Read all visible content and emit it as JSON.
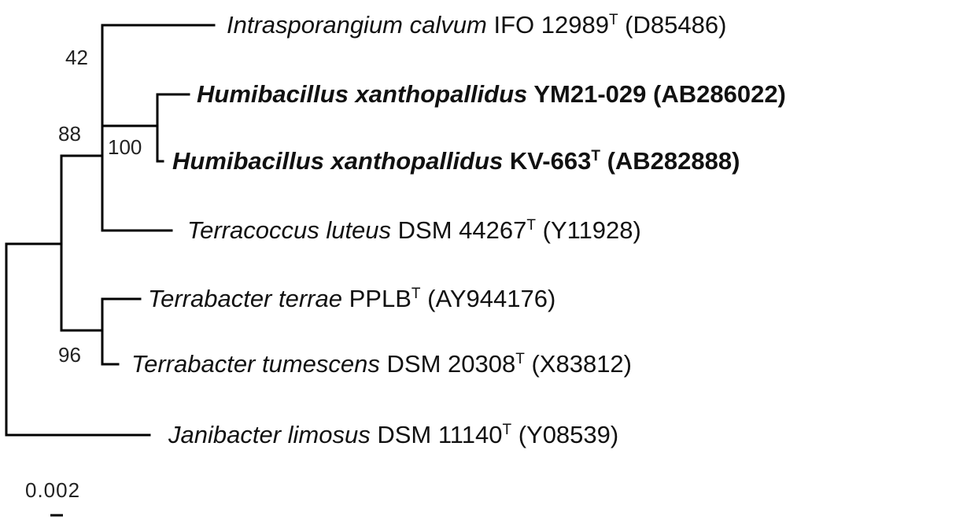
{
  "tree": {
    "leaves": [
      {
        "species": "Intrasporangium calvum",
        "strain": "IFO 12989",
        "type_strain": "T",
        "accession": "(D85486)",
        "bold": false
      },
      {
        "species": "Humibacillus xanthopallidus",
        "strain": "YM21-029",
        "type_strain": "",
        "accession": "(AB286022)",
        "bold": true
      },
      {
        "species": "Humibacillus xanthopallidus",
        "strain": "KV-663",
        "type_strain": "T",
        "accession": "(AB282888)",
        "bold": true
      },
      {
        "species": "Terracoccus luteus",
        "strain": "DSM 44267",
        "type_strain": "T",
        "accession": "(Y11928)",
        "bold": false
      },
      {
        "species": "Terrabacter terrae",
        "strain": "PPLB",
        "type_strain": "T",
        "accession": "(AY944176)",
        "bold": false
      },
      {
        "species": "Terrabacter tumescens",
        "strain": "DSM 20308",
        "type_strain": "T",
        "accession": "(X83812)",
        "bold": false
      },
      {
        "species": "Janibacter limosus",
        "strain": "DSM 11140",
        "type_strain": "T",
        "accession": "(Y08539)",
        "bold": false
      }
    ],
    "bootstrap": {
      "intrasporangium_node": "42",
      "humibacillus_node": "100",
      "terracoccus_group_node": "88",
      "terrabacter_node": "96"
    },
    "scale_bar": "0.002"
  }
}
